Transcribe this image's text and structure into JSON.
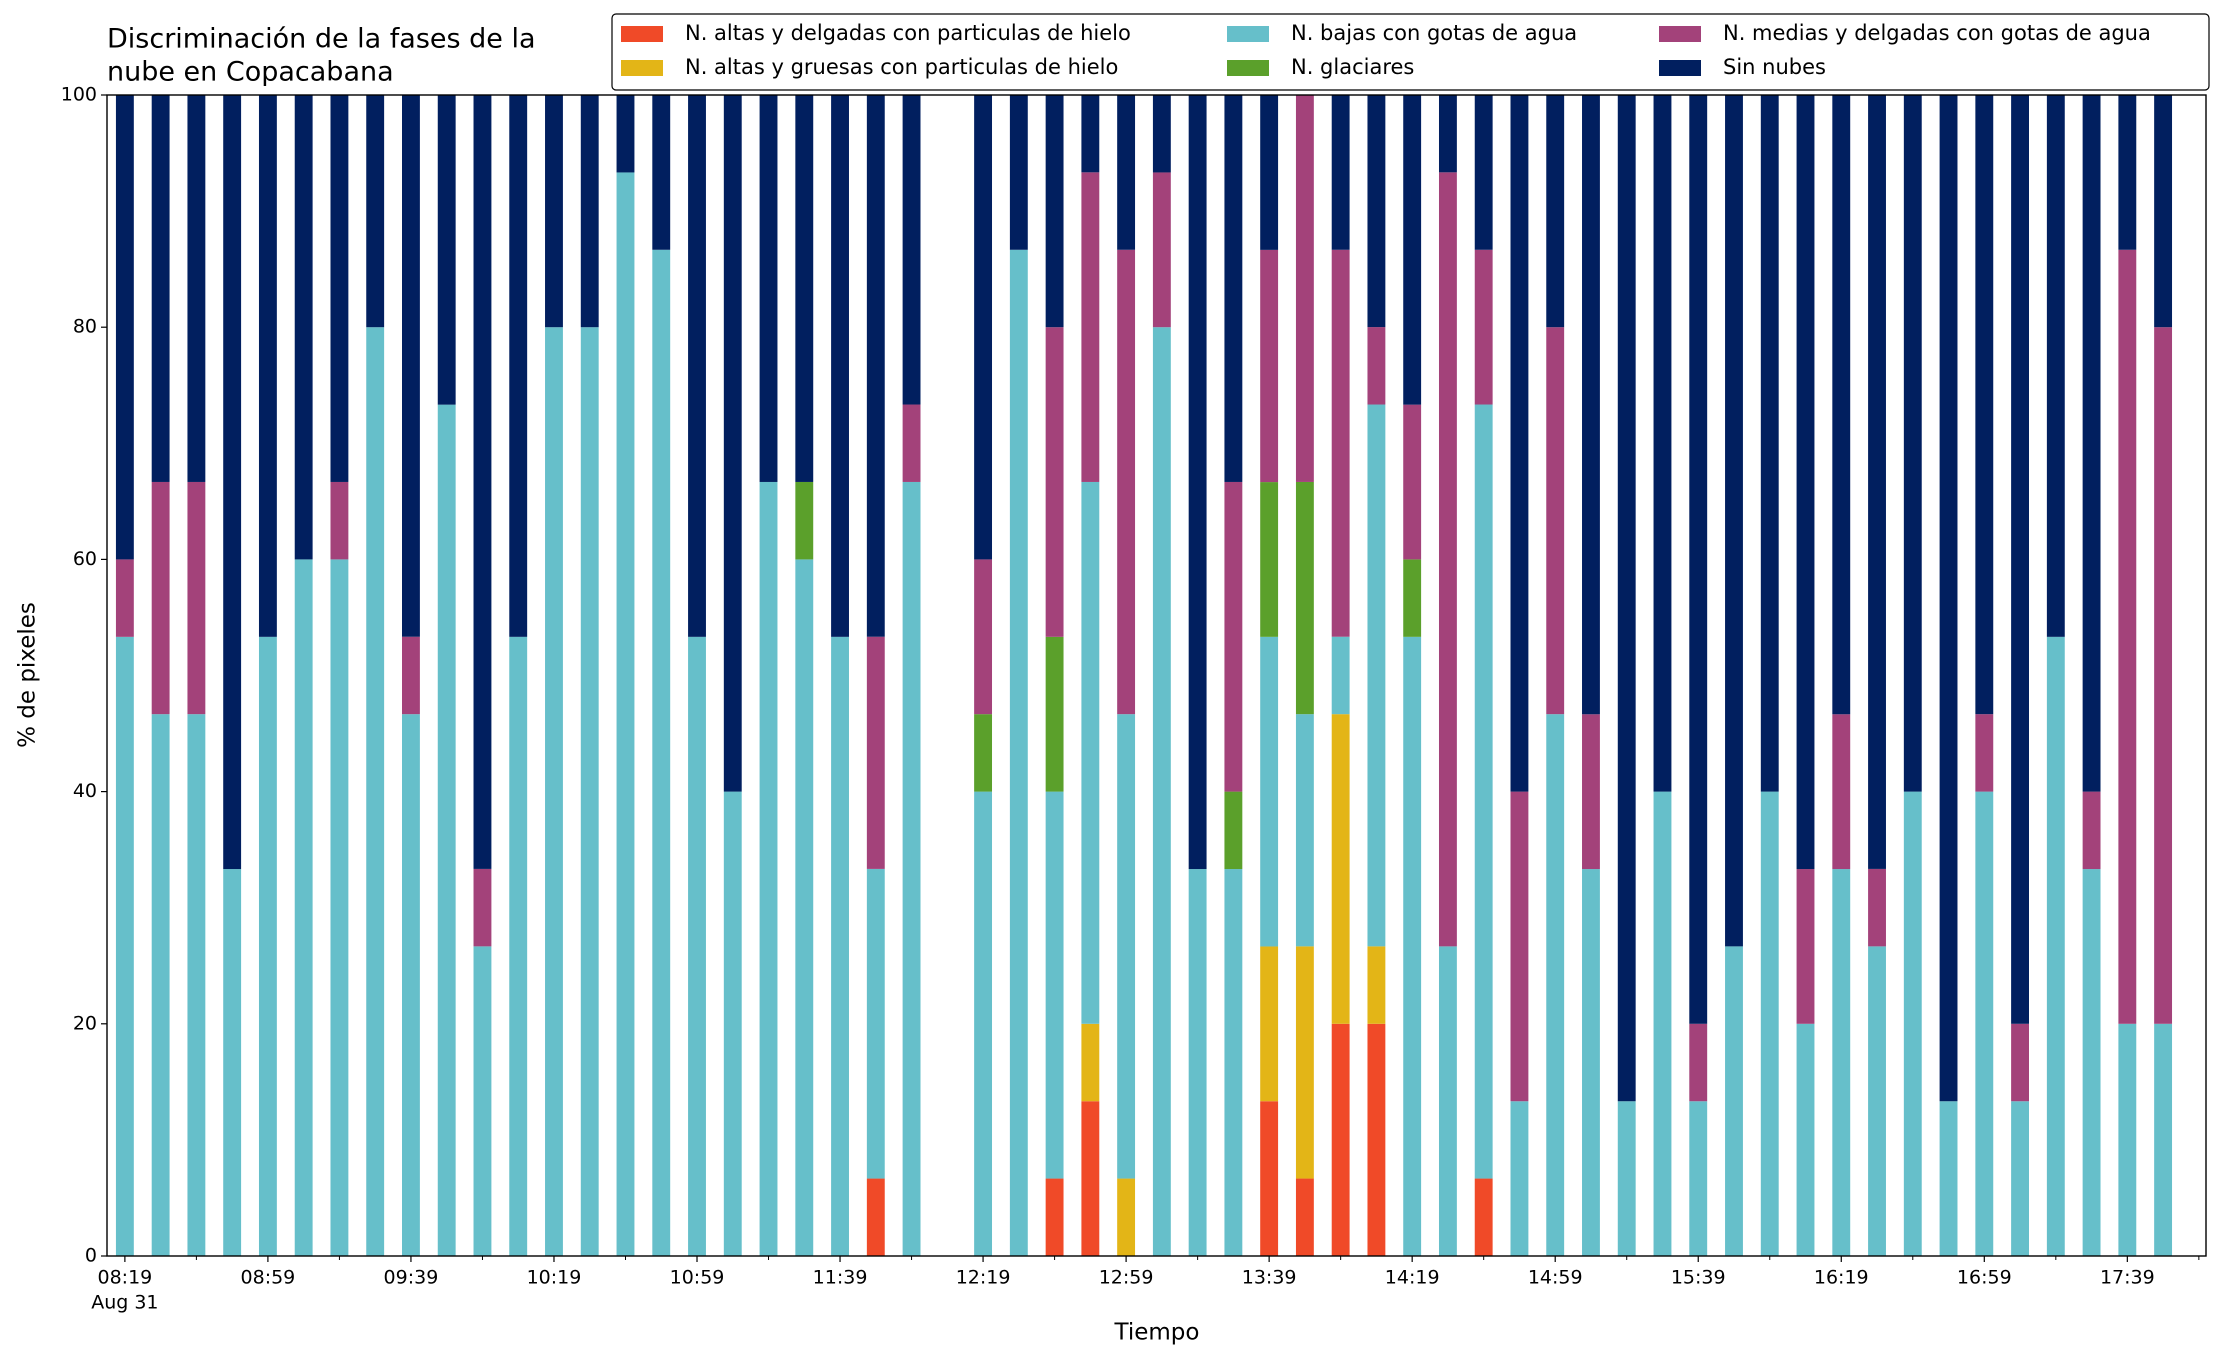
{
  "chart_data": {
    "type": "stacked_bar",
    "title": [
      "Discriminación de la fases de la",
      "nube en Copacabana"
    ],
    "xlabel": "Tiempo",
    "ylabel": "% de pixeles",
    "xdate_label": "Aug 31",
    "x": [
      "08:19",
      "08:29",
      "08:39",
      "08:49",
      "08:59",
      "09:09",
      "09:19",
      "09:29",
      "09:39",
      "09:49",
      "09:59",
      "10:09",
      "10:19",
      "10:29",
      "10:39",
      "10:49",
      "10:59",
      "11:09",
      "11:19",
      "11:29",
      "11:39",
      "11:49",
      "11:59",
      "12:09",
      "12:19",
      "12:29",
      "12:39",
      "12:49",
      "12:59",
      "13:09",
      "13:19",
      "13:29",
      "13:39",
      "13:49",
      "13:59",
      "14:09",
      "14:19",
      "14:29",
      "14:39",
      "14:49",
      "14:59",
      "15:09",
      "15:19",
      "15:29",
      "15:39",
      "15:49",
      "15:59",
      "16:09",
      "16:19",
      "16:29",
      "16:39",
      "16:49",
      "16:59",
      "17:09",
      "17:19",
      "17:29",
      "17:39",
      "17:49"
    ],
    "xlim": [
      "08:14",
      "18:01"
    ],
    "xticks": [
      "08:19",
      "08:59",
      "09:39",
      "10:19",
      "10:59",
      "11:39",
      "12:19",
      "12:59",
      "13:39",
      "14:19",
      "14:59",
      "15:39",
      "16:19",
      "16:59",
      "17:39"
    ],
    "xminorticks": [
      "08:39",
      "09:19",
      "09:59",
      "10:39",
      "11:19",
      "11:59",
      "12:39",
      "13:19",
      "13:59",
      "14:39",
      "15:19",
      "15:59",
      "16:39",
      "17:19",
      "17:59"
    ],
    "ylim": [
      0,
      100
    ],
    "yticks": [
      0,
      20,
      40,
      60,
      80,
      100
    ],
    "series": [
      {
        "name": "N. altas y delgadas con particulas de hielo",
        "color": "#f04a28",
        "values": [
          0,
          0,
          0,
          0,
          0,
          0,
          0,
          0,
          0,
          0,
          0,
          0,
          0,
          0,
          0,
          0,
          0,
          0,
          0,
          0,
          0,
          6.67,
          0,
          null,
          0,
          0,
          6.67,
          13.33,
          0,
          0,
          0,
          0,
          13.33,
          6.67,
          20,
          20,
          0,
          0,
          6.67,
          0,
          0,
          0,
          0,
          0,
          0,
          0,
          0,
          0,
          0,
          0,
          0,
          0,
          0,
          0,
          0,
          0,
          0,
          0
        ]
      },
      {
        "name": "N. altas y gruesas con particulas de hielo",
        "color": "#e3b517",
        "values": [
          0,
          0,
          0,
          0,
          0,
          0,
          0,
          0,
          0,
          0,
          0,
          0,
          0,
          0,
          0,
          0,
          0,
          0,
          0,
          0,
          0,
          0,
          0,
          null,
          0,
          0,
          0,
          6.67,
          6.67,
          0,
          0,
          0,
          13.33,
          20,
          26.67,
          6.67,
          0,
          0,
          0,
          0,
          0,
          0,
          0,
          0,
          0,
          0,
          0,
          0,
          0,
          0,
          0,
          0,
          0,
          0,
          0,
          0,
          0,
          0
        ]
      },
      {
        "name": "N. bajas con gotas de agua",
        "color": "#66bfca",
        "values": [
          53.33,
          46.67,
          46.67,
          33.33,
          53.33,
          60,
          60,
          80,
          46.67,
          73.33,
          26.67,
          53.33,
          80,
          80,
          93.33,
          86.67,
          53.33,
          40,
          66.67,
          60,
          53.33,
          26.67,
          66.67,
          null,
          40,
          86.67,
          33.33,
          46.67,
          40,
          80,
          33.33,
          33.33,
          26.67,
          20,
          6.67,
          46.67,
          53.33,
          26.67,
          66.67,
          13.33,
          46.67,
          33.33,
          13.33,
          40,
          13.33,
          26.67,
          40,
          20,
          33.33,
          26.67,
          40,
          13.33,
          40,
          13.33,
          53.33,
          33.33,
          20,
          20
        ]
      },
      {
        "name": "N. glaciares",
        "color": "#5ba02b",
        "values": [
          0,
          0,
          0,
          0,
          0,
          0,
          0,
          0,
          0,
          0,
          0,
          0,
          0,
          0,
          0,
          0,
          0,
          0,
          0,
          6.67,
          0,
          0,
          0,
          null,
          6.67,
          0,
          13.33,
          0,
          0,
          0,
          0,
          6.67,
          13.33,
          20,
          0,
          0,
          6.67,
          0,
          0,
          0,
          0,
          0,
          0,
          0,
          0,
          0,
          0,
          0,
          0,
          0,
          0,
          0,
          0,
          0,
          0,
          0,
          0,
          0
        ]
      },
      {
        "name": "N. medias y delgadas con gotas de agua",
        "color": "#a3427a",
        "values": [
          6.67,
          20,
          20,
          0,
          0,
          0,
          6.67,
          0,
          6.67,
          0,
          6.67,
          0,
          0,
          0,
          0,
          0,
          0,
          0,
          0,
          0,
          0,
          20,
          6.67,
          null,
          13.33,
          0,
          26.67,
          26.67,
          40,
          13.33,
          0,
          26.67,
          20,
          33.33,
          33.33,
          6.67,
          13.33,
          66.67,
          13.33,
          26.67,
          33.33,
          13.33,
          0,
          0,
          6.67,
          0,
          0,
          13.33,
          13.33,
          6.67,
          0,
          0,
          6.67,
          6.67,
          0,
          6.67,
          66.67,
          60
        ]
      },
      {
        "name": "Sin nubes",
        "color": "#011f5f",
        "values": [
          40,
          33.33,
          33.33,
          66.67,
          46.67,
          40,
          33.33,
          20,
          46.67,
          26.67,
          66.67,
          46.67,
          20,
          20,
          6.67,
          13.33,
          46.67,
          60,
          33.33,
          33.33,
          46.67,
          46.67,
          26.67,
          null,
          40,
          13.33,
          20,
          6.67,
          13.33,
          6.67,
          66.67,
          33.33,
          13.33,
          0,
          13.33,
          20,
          26.67,
          6.67,
          13.33,
          60,
          20,
          53.33,
          86.67,
          60,
          80,
          73.33,
          60,
          66.67,
          53.33,
          66.67,
          60,
          86.67,
          53.33,
          80,
          46.67,
          60,
          13.33,
          20
        ]
      }
    ]
  }
}
